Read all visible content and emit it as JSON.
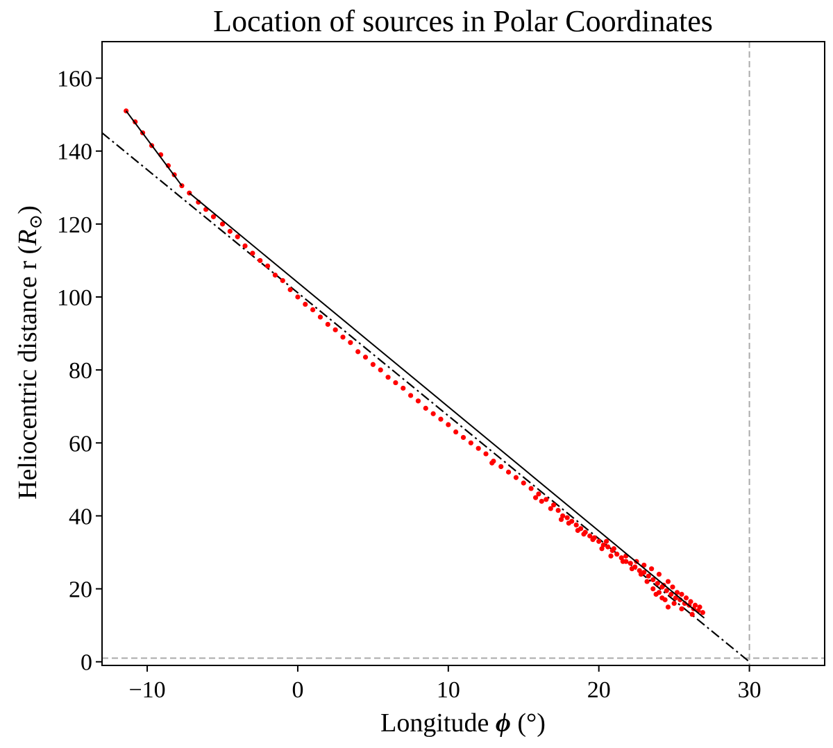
{
  "chart_data": {
    "type": "scatter",
    "title": "Location of sources in Polar Coordinates",
    "xlabel_prefix": "Longitude ",
    "xlabel_symbol": "ϕ",
    "xlabel_suffix": " (°)",
    "ylabel_prefix": "Heliocentric distance r (",
    "ylabel_symbol": "R",
    "ylabel_sub": "⊙",
    "ylabel_suffix": ")",
    "xlim": [
      -13,
      35
    ],
    "ylim": [
      -1,
      170
    ],
    "xticks": [
      -10,
      0,
      10,
      20,
      30
    ],
    "xtick_labels": [
      "−10",
      "0",
      "10",
      "20",
      "30"
    ],
    "yticks": [
      0,
      20,
      40,
      60,
      80,
      100,
      120,
      140,
      160
    ],
    "ytick_labels": [
      "0",
      "20",
      "40",
      "60",
      "80",
      "100",
      "120",
      "140",
      "160"
    ],
    "grid": false,
    "colors": {
      "points": "#ff0000",
      "lines": "#000000",
      "reference": "#aaaaaa"
    },
    "reference_lines": [
      {
        "orientation": "vertical",
        "x": 30,
        "style": "dashed"
      },
      {
        "orientation": "horizontal",
        "y": 1,
        "style": "dashed"
      }
    ],
    "dashdot_fit": {
      "x": [
        -13,
        30
      ],
      "y": [
        145,
        0
      ]
    },
    "segment_fits": [
      {
        "x": [
          -11.4,
          -7.7
        ],
        "y": [
          151,
          130.5
        ]
      },
      {
        "x": [
          -7.2,
          27.0
        ],
        "y": [
          128.5,
          12
        ]
      }
    ],
    "points": [
      [
        -11.4,
        151
      ],
      [
        -10.8,
        148
      ],
      [
        -10.3,
        145
      ],
      [
        -9.7,
        141.5
      ],
      [
        -9.1,
        139
      ],
      [
        -8.6,
        136
      ],
      [
        -8.2,
        133.5
      ],
      [
        -7.7,
        130.5
      ],
      [
        -7.2,
        128.5
      ],
      [
        -6.6,
        126
      ],
      [
        -6.1,
        124
      ],
      [
        -5.6,
        122
      ],
      [
        -5.0,
        120
      ],
      [
        -4.5,
        118
      ],
      [
        -4.0,
        116.5
      ],
      [
        -3.5,
        114
      ],
      [
        -3.0,
        112
      ],
      [
        -2.5,
        110
      ],
      [
        -2.0,
        108.5
      ],
      [
        -1.5,
        106
      ],
      [
        -1.0,
        104.5
      ],
      [
        -0.5,
        102
      ],
      [
        0.0,
        100
      ],
      [
        0.5,
        98
      ],
      [
        1.0,
        96.5
      ],
      [
        1.5,
        94.5
      ],
      [
        2.0,
        92.5
      ],
      [
        2.5,
        91
      ],
      [
        3.0,
        89
      ],
      [
        3.5,
        87.5
      ],
      [
        4.0,
        85
      ],
      [
        4.5,
        83.5
      ],
      [
        5.0,
        81.5
      ],
      [
        5.5,
        80
      ],
      [
        6.0,
        78
      ],
      [
        6.5,
        76.5
      ],
      [
        7.0,
        75
      ],
      [
        7.5,
        73
      ],
      [
        8.0,
        71.5
      ],
      [
        8.5,
        69.5
      ],
      [
        9.0,
        68
      ],
      [
        9.5,
        66.5
      ],
      [
        10.0,
        65
      ],
      [
        10.5,
        63
      ],
      [
        11.0,
        61.5
      ],
      [
        11.5,
        60
      ],
      [
        12.0,
        58.5
      ],
      [
        12.5,
        57
      ],
      [
        13.0,
        55
      ],
      [
        13.5,
        53.5
      ],
      [
        14.0,
        52
      ],
      [
        14.5,
        50.5
      ],
      [
        15.0,
        49
      ],
      [
        15.5,
        47.5
      ],
      [
        16.0,
        46
      ],
      [
        16.5,
        44.5
      ],
      [
        12.9,
        54.5
      ],
      [
        15.8,
        45
      ],
      [
        17.0,
        43
      ],
      [
        17.3,
        41.5
      ],
      [
        17.6,
        40
      ],
      [
        17.9,
        39.5
      ],
      [
        18.2,
        38.5
      ],
      [
        18.5,
        37.5
      ],
      [
        18.8,
        36.5
      ],
      [
        19.1,
        35.5
      ],
      [
        19.4,
        34.5
      ],
      [
        19.7,
        34
      ],
      [
        20.0,
        33
      ],
      [
        20.3,
        32
      ],
      [
        20.6,
        31.5
      ],
      [
        20.9,
        30.5
      ],
      [
        21.2,
        29.5
      ],
      [
        21.5,
        28.5
      ],
      [
        21.8,
        27.5
      ],
      [
        22.1,
        27
      ],
      [
        22.4,
        26
      ],
      [
        22.7,
        25
      ],
      [
        23.0,
        24.5
      ],
      [
        23.3,
        23.5
      ],
      [
        23.6,
        22.5
      ],
      [
        23.9,
        21.5
      ],
      [
        24.2,
        20.5
      ],
      [
        24.5,
        19.5
      ],
      [
        24.8,
        18.5
      ],
      [
        25.1,
        17.5
      ],
      [
        25.4,
        17
      ],
      [
        25.7,
        16
      ],
      [
        26.0,
        15.5
      ],
      [
        26.3,
        14.5
      ],
      [
        26.6,
        14
      ],
      [
        26.9,
        13.5
      ],
      [
        18.0,
        38
      ],
      [
        19.0,
        35
      ],
      [
        20.5,
        33
      ],
      [
        21.0,
        31
      ],
      [
        21.8,
        29
      ],
      [
        22.5,
        27.5
      ],
      [
        23.0,
        26.5
      ],
      [
        23.5,
        25.5
      ],
      [
        23.2,
        22
      ],
      [
        24.0,
        24
      ],
      [
        24.3,
        21
      ],
      [
        24.6,
        22
      ],
      [
        24.9,
        20.5
      ],
      [
        25.2,
        19
      ],
      [
        24.2,
        17.5
      ],
      [
        24.0,
        19
      ],
      [
        24.6,
        15
      ],
      [
        25.5,
        18.5
      ],
      [
        25.8,
        17.5
      ],
      [
        26.1,
        16.5
      ],
      [
        26.4,
        15.5
      ],
      [
        26.7,
        15
      ],
      [
        26.2,
        13
      ],
      [
        25.5,
        14.5
      ],
      [
        25.0,
        16
      ],
      [
        24.4,
        17
      ],
      [
        23.8,
        18.5
      ],
      [
        23.6,
        20
      ],
      [
        22.8,
        24
      ],
      [
        22.2,
        25.5
      ],
      [
        21.6,
        27.5
      ],
      [
        20.8,
        29
      ],
      [
        20.2,
        31
      ],
      [
        19.6,
        33.5
      ],
      [
        18.6,
        36
      ],
      [
        17.5,
        39
      ],
      [
        16.8,
        42
      ],
      [
        16.2,
        44
      ]
    ]
  }
}
